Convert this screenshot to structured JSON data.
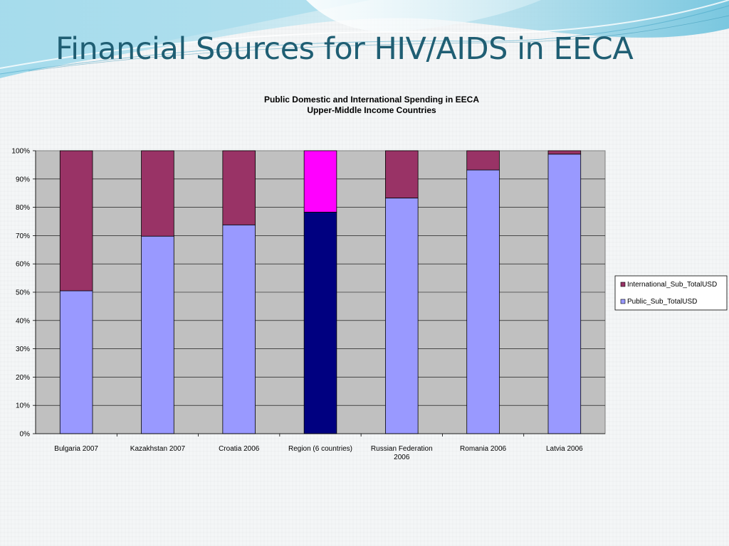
{
  "slide": {
    "title": "Financial Sources for HIV/AIDS in EECA"
  },
  "chart_data": {
    "type": "bar",
    "stacked": true,
    "title": "Public Domestic and International Spending in EECA",
    "subtitle": "Upper-Middle Income Countries",
    "categories": [
      [
        "Bulgaria 2007"
      ],
      [
        "Kazakhstan 2007"
      ],
      [
        "Croatia 2006"
      ],
      [
        "Region (6 countries)"
      ],
      [
        "Russian Federation",
        "2006"
      ],
      [
        "Romania 2006"
      ],
      [
        "Latvia 2006"
      ]
    ],
    "series": [
      {
        "name": "Public_Sub_TotalUSD",
        "color": "#9999ff",
        "highlight_color": "#000080",
        "values": [
          50.5,
          69.8,
          73.8,
          78.3,
          83.3,
          93.2,
          98.8
        ]
      },
      {
        "name": "International_Sub_TotalUSD",
        "color": "#993366",
        "highlight_color": "#ff00ff",
        "values": [
          49.5,
          30.2,
          26.2,
          21.7,
          16.7,
          6.8,
          1.2
        ]
      }
    ],
    "highlight_index": 3,
    "ylim": [
      0,
      100
    ],
    "yticks": [
      "0%",
      "10%",
      "20%",
      "30%",
      "40%",
      "50%",
      "60%",
      "70%",
      "80%",
      "90%",
      "100%"
    ],
    "plot_background": "#c0c0c0",
    "grid": true,
    "legend_position": "right"
  }
}
